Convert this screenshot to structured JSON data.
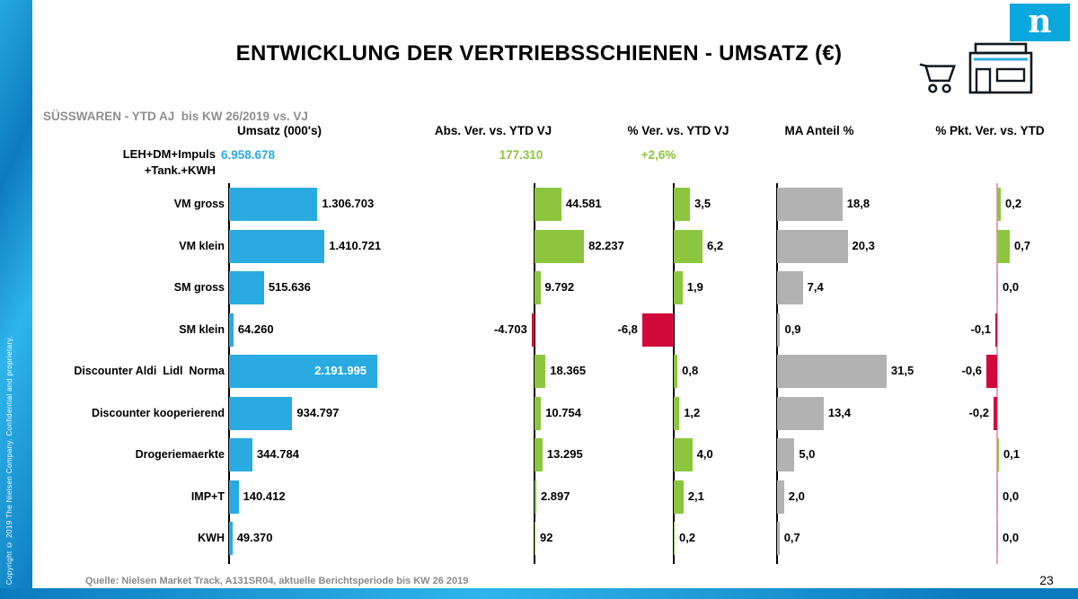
{
  "slide": {
    "title": "ENTWICKLUNG DER VERTRIEBSSCHIENEN - UMSATZ (€)",
    "subtitle": "SÜSSWAREN - YTD AJ  bis KW 26/2019 vs. VJ",
    "source": "Quelle: Nielsen Market Track, A131SR04, aktuelle Berichtsperiode bis KW 26 2019",
    "page_number": "23",
    "copyright": "Copyright © 2019 The Nielsen Company. Confidential and proprietary.",
    "logo_letter": "n"
  },
  "columns": [
    "Umsatz (000's)",
    "Abs. Ver. vs. YTD VJ",
    "% Ver. vs. YTD VJ",
    "MA Anteil %",
    "% Pkt. Ver. vs. YTD"
  ],
  "total_row": {
    "label_line1": "LEH+DM+Impuls",
    "label_line2": "+Tank.+KWH",
    "umsatz": "6.958.678",
    "abs_ver": "177.310",
    "pct_ver": "+2,6%"
  },
  "colors": {
    "blue": "#29abe2",
    "green": "#8cc63f",
    "red": "#d20a3c",
    "gray": "#b2b2b2",
    "zero_tick": "#dc8aa0"
  },
  "chart_data": {
    "type": "bar",
    "orientation": "horizontal",
    "title": "ENTWICKLUNG DER VERTRIEBSSCHIENEN - UMSATZ (€)",
    "subtitle": "SÜSSWAREN - YTD AJ bis KW 26/2019 vs. VJ",
    "categories": [
      "VM gross",
      "VM klein",
      "SM gross",
      "SM klein",
      "Discounter Aldi  Lidl  Norma",
      "Discounter kooperierend",
      "Drogeriemaerkte",
      "IMP+T",
      "KWH"
    ],
    "series": [
      {
        "name": "Umsatz (000's)",
        "values": [
          1306703,
          1410721,
          515636,
          64260,
          2191995,
          934797,
          344784,
          140412,
          49370
        ],
        "display": [
          "1.306.703",
          "1.410.721",
          "515.636",
          "64.260",
          "2.191.995",
          "934.797",
          "344.784",
          "140.412",
          "49.370"
        ]
      },
      {
        "name": "Abs. Ver. vs. YTD VJ",
        "values": [
          44581,
          82237,
          9792,
          -4703,
          18365,
          10754,
          13295,
          2897,
          92
        ],
        "display": [
          "44.581",
          "82.237",
          "9.792",
          "-4.703",
          "18.365",
          "10.754",
          "13.295",
          "2.897",
          "92"
        ]
      },
      {
        "name": "% Ver. vs. YTD VJ",
        "values": [
          3.5,
          6.2,
          1.9,
          -6.8,
          0.8,
          1.2,
          4.0,
          2.1,
          0.2
        ],
        "display": [
          "3,5",
          "6,2",
          "1,9",
          "-6,8",
          "0,8",
          "1,2",
          "4,0",
          "2,1",
          "0,2"
        ]
      },
      {
        "name": "MA Anteil %",
        "values": [
          18.8,
          20.3,
          7.4,
          0.9,
          31.5,
          13.4,
          5.0,
          2.0,
          0.7
        ],
        "display": [
          "18,8",
          "20,3",
          "7,4",
          "0,9",
          "31,5",
          "13,4",
          "5,0",
          "2,0",
          "0,7"
        ]
      },
      {
        "name": "% Pkt. Ver. vs. YTD",
        "values": [
          0.2,
          0.7,
          0.0,
          -0.1,
          -0.6,
          -0.2,
          0.1,
          0.0,
          0.0
        ],
        "display": [
          "0,2",
          "0,7",
          "0,0",
          "-0,1",
          "-0,6",
          "-0,2",
          "0,1",
          "0,0",
          "0,0"
        ]
      }
    ],
    "totals": {
      "label": "LEH+DM+Impuls +Tank.+KWH",
      "umsatz": 6958678,
      "abs_ver": 177310,
      "pct_ver": "+2,6%"
    },
    "legend": false,
    "grid": false
  }
}
